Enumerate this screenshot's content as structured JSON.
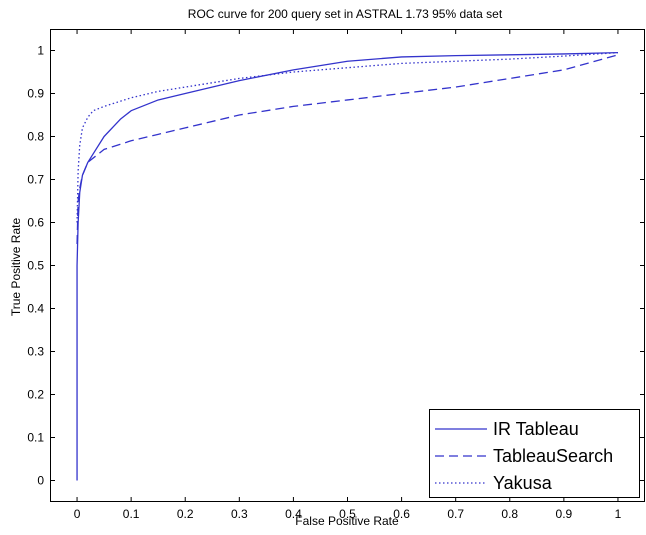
{
  "chart_data": {
    "type": "line",
    "title": "ROC curve for 200 query set in ASTRAL 1.73 95% data set",
    "xlabel": "False Positive Rate",
    "ylabel": "True Positive Rate",
    "xlim": [
      -0.05,
      1.05
    ],
    "ylim": [
      -0.05,
      1.05
    ],
    "x_ticks": [
      "0",
      "0.1",
      "0.2",
      "0.3",
      "0.4",
      "0.5",
      "0.6",
      "0.7",
      "0.8",
      "0.9",
      "1"
    ],
    "y_ticks": [
      "0",
      "0.1",
      "0.2",
      "0.3",
      "0.4",
      "0.5",
      "0.6",
      "0.7",
      "0.8",
      "0.9",
      "1"
    ],
    "grid": false,
    "legend_position": "bottom-right",
    "series": [
      {
        "name": "IR Tableau",
        "style": "solid",
        "color": "#3333cc",
        "x": [
          0,
          0,
          0.002,
          0.005,
          0.01,
          0.02,
          0.03,
          0.05,
          0.08,
          0.1,
          0.15,
          0.2,
          0.3,
          0.4,
          0.5,
          0.6,
          0.7,
          0.8,
          0.9,
          1.0
        ],
        "y": [
          0,
          0.5,
          0.6,
          0.67,
          0.71,
          0.74,
          0.76,
          0.8,
          0.84,
          0.86,
          0.885,
          0.9,
          0.93,
          0.955,
          0.975,
          0.985,
          0.988,
          0.99,
          0.992,
          0.995
        ]
      },
      {
        "name": "TableauSearch",
        "style": "dashed",
        "color": "#3333cc",
        "x": [
          0,
          0.002,
          0.005,
          0.01,
          0.02,
          0.05,
          0.1,
          0.15,
          0.2,
          0.3,
          0.4,
          0.5,
          0.6,
          0.7,
          0.8,
          0.9,
          1.0
        ],
        "y": [
          0.55,
          0.65,
          0.68,
          0.71,
          0.74,
          0.77,
          0.79,
          0.805,
          0.82,
          0.85,
          0.87,
          0.885,
          0.9,
          0.915,
          0.935,
          0.955,
          0.99
        ]
      },
      {
        "name": "Yakusa",
        "style": "dotted",
        "color": "#3333cc",
        "x": [
          0,
          0.002,
          0.005,
          0.01,
          0.02,
          0.03,
          0.05,
          0.1,
          0.15,
          0.2,
          0.3,
          0.4,
          0.5,
          0.6,
          0.7,
          0.8,
          0.9,
          1.0
        ],
        "y": [
          0.6,
          0.72,
          0.78,
          0.82,
          0.845,
          0.86,
          0.87,
          0.89,
          0.905,
          0.915,
          0.935,
          0.95,
          0.96,
          0.97,
          0.975,
          0.98,
          0.987,
          0.995
        ]
      }
    ]
  }
}
